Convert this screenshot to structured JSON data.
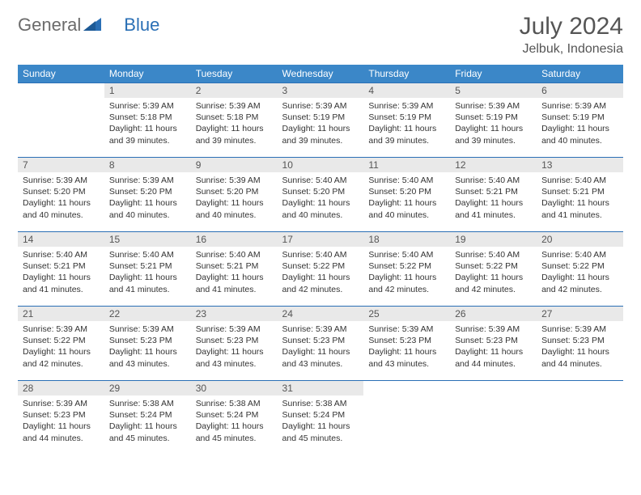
{
  "logo": {
    "part1": "General",
    "part2": "Blue"
  },
  "title": "July 2024",
  "location": "Jelbuk, Indonesia",
  "colors": {
    "header_bg": "#3b87c8",
    "header_fg": "#ffffff",
    "daynum_bg": "#e9e9e9",
    "border": "#2a6fb5",
    "logo_gray": "#6b6b6b",
    "logo_blue": "#2a6fb5"
  },
  "day_labels": [
    "Sunday",
    "Monday",
    "Tuesday",
    "Wednesday",
    "Thursday",
    "Friday",
    "Saturday"
  ],
  "weeks": [
    [
      {
        "n": "",
        "empty": true
      },
      {
        "n": "1",
        "sr": "Sunrise: 5:39 AM",
        "ss": "Sunset: 5:18 PM",
        "dl": "Daylight: 11 hours and 39 minutes."
      },
      {
        "n": "2",
        "sr": "Sunrise: 5:39 AM",
        "ss": "Sunset: 5:18 PM",
        "dl": "Daylight: 11 hours and 39 minutes."
      },
      {
        "n": "3",
        "sr": "Sunrise: 5:39 AM",
        "ss": "Sunset: 5:19 PM",
        "dl": "Daylight: 11 hours and 39 minutes."
      },
      {
        "n": "4",
        "sr": "Sunrise: 5:39 AM",
        "ss": "Sunset: 5:19 PM",
        "dl": "Daylight: 11 hours and 39 minutes."
      },
      {
        "n": "5",
        "sr": "Sunrise: 5:39 AM",
        "ss": "Sunset: 5:19 PM",
        "dl": "Daylight: 11 hours and 39 minutes."
      },
      {
        "n": "6",
        "sr": "Sunrise: 5:39 AM",
        "ss": "Sunset: 5:19 PM",
        "dl": "Daylight: 11 hours and 40 minutes."
      }
    ],
    [
      {
        "n": "7",
        "sr": "Sunrise: 5:39 AM",
        "ss": "Sunset: 5:20 PM",
        "dl": "Daylight: 11 hours and 40 minutes."
      },
      {
        "n": "8",
        "sr": "Sunrise: 5:39 AM",
        "ss": "Sunset: 5:20 PM",
        "dl": "Daylight: 11 hours and 40 minutes."
      },
      {
        "n": "9",
        "sr": "Sunrise: 5:39 AM",
        "ss": "Sunset: 5:20 PM",
        "dl": "Daylight: 11 hours and 40 minutes."
      },
      {
        "n": "10",
        "sr": "Sunrise: 5:40 AM",
        "ss": "Sunset: 5:20 PM",
        "dl": "Daylight: 11 hours and 40 minutes."
      },
      {
        "n": "11",
        "sr": "Sunrise: 5:40 AM",
        "ss": "Sunset: 5:20 PM",
        "dl": "Daylight: 11 hours and 40 minutes."
      },
      {
        "n": "12",
        "sr": "Sunrise: 5:40 AM",
        "ss": "Sunset: 5:21 PM",
        "dl": "Daylight: 11 hours and 41 minutes."
      },
      {
        "n": "13",
        "sr": "Sunrise: 5:40 AM",
        "ss": "Sunset: 5:21 PM",
        "dl": "Daylight: 11 hours and 41 minutes."
      }
    ],
    [
      {
        "n": "14",
        "sr": "Sunrise: 5:40 AM",
        "ss": "Sunset: 5:21 PM",
        "dl": "Daylight: 11 hours and 41 minutes."
      },
      {
        "n": "15",
        "sr": "Sunrise: 5:40 AM",
        "ss": "Sunset: 5:21 PM",
        "dl": "Daylight: 11 hours and 41 minutes."
      },
      {
        "n": "16",
        "sr": "Sunrise: 5:40 AM",
        "ss": "Sunset: 5:21 PM",
        "dl": "Daylight: 11 hours and 41 minutes."
      },
      {
        "n": "17",
        "sr": "Sunrise: 5:40 AM",
        "ss": "Sunset: 5:22 PM",
        "dl": "Daylight: 11 hours and 42 minutes."
      },
      {
        "n": "18",
        "sr": "Sunrise: 5:40 AM",
        "ss": "Sunset: 5:22 PM",
        "dl": "Daylight: 11 hours and 42 minutes."
      },
      {
        "n": "19",
        "sr": "Sunrise: 5:40 AM",
        "ss": "Sunset: 5:22 PM",
        "dl": "Daylight: 11 hours and 42 minutes."
      },
      {
        "n": "20",
        "sr": "Sunrise: 5:40 AM",
        "ss": "Sunset: 5:22 PM",
        "dl": "Daylight: 11 hours and 42 minutes."
      }
    ],
    [
      {
        "n": "21",
        "sr": "Sunrise: 5:39 AM",
        "ss": "Sunset: 5:22 PM",
        "dl": "Daylight: 11 hours and 42 minutes."
      },
      {
        "n": "22",
        "sr": "Sunrise: 5:39 AM",
        "ss": "Sunset: 5:23 PM",
        "dl": "Daylight: 11 hours and 43 minutes."
      },
      {
        "n": "23",
        "sr": "Sunrise: 5:39 AM",
        "ss": "Sunset: 5:23 PM",
        "dl": "Daylight: 11 hours and 43 minutes."
      },
      {
        "n": "24",
        "sr": "Sunrise: 5:39 AM",
        "ss": "Sunset: 5:23 PM",
        "dl": "Daylight: 11 hours and 43 minutes."
      },
      {
        "n": "25",
        "sr": "Sunrise: 5:39 AM",
        "ss": "Sunset: 5:23 PM",
        "dl": "Daylight: 11 hours and 43 minutes."
      },
      {
        "n": "26",
        "sr": "Sunrise: 5:39 AM",
        "ss": "Sunset: 5:23 PM",
        "dl": "Daylight: 11 hours and 44 minutes."
      },
      {
        "n": "27",
        "sr": "Sunrise: 5:39 AM",
        "ss": "Sunset: 5:23 PM",
        "dl": "Daylight: 11 hours and 44 minutes."
      }
    ],
    [
      {
        "n": "28",
        "sr": "Sunrise: 5:39 AM",
        "ss": "Sunset: 5:23 PM",
        "dl": "Daylight: 11 hours and 44 minutes."
      },
      {
        "n": "29",
        "sr": "Sunrise: 5:38 AM",
        "ss": "Sunset: 5:24 PM",
        "dl": "Daylight: 11 hours and 45 minutes."
      },
      {
        "n": "30",
        "sr": "Sunrise: 5:38 AM",
        "ss": "Sunset: 5:24 PM",
        "dl": "Daylight: 11 hours and 45 minutes."
      },
      {
        "n": "31",
        "sr": "Sunrise: 5:38 AM",
        "ss": "Sunset: 5:24 PM",
        "dl": "Daylight: 11 hours and 45 minutes."
      },
      {
        "n": "",
        "empty": true
      },
      {
        "n": "",
        "empty": true
      },
      {
        "n": "",
        "empty": true
      }
    ]
  ]
}
